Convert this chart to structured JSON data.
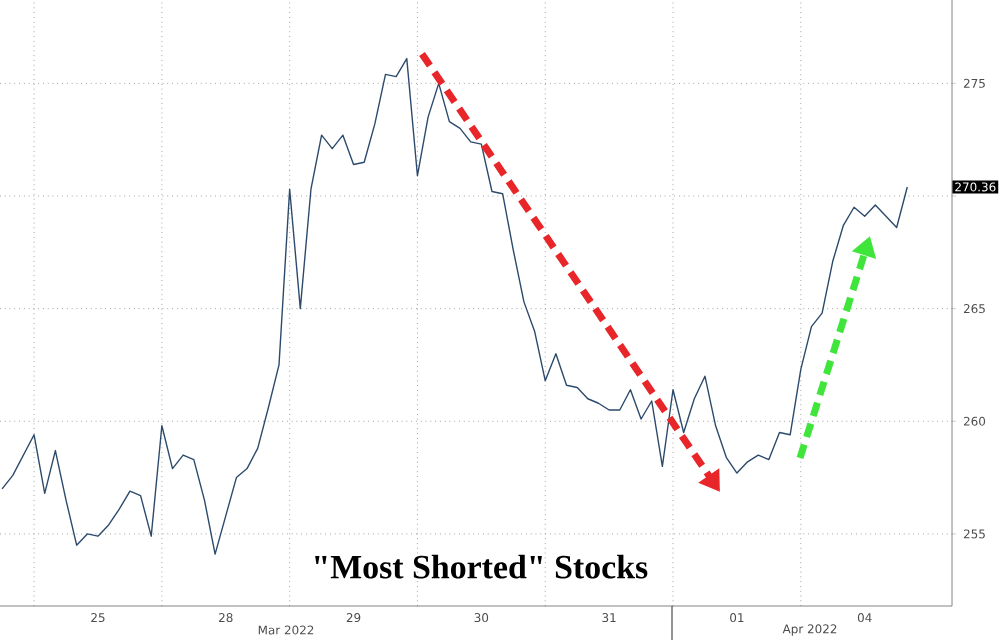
{
  "chart_data": {
    "type": "line",
    "title": "\"Most Shorted\" Stocks",
    "categories": [
      null,
      null,
      null,
      null,
      null,
      null,
      null,
      null,
      null,
      "25",
      null,
      null,
      null,
      null,
      null,
      null,
      null,
      null,
      null,
      null,
      null,
      "28",
      null,
      null,
      null,
      null,
      null,
      null,
      null,
      null,
      null,
      null,
      null,
      "29",
      null,
      null,
      null,
      null,
      null,
      null,
      null,
      null,
      null,
      null,
      null,
      "30",
      null,
      null,
      null,
      null,
      null,
      null,
      null,
      null,
      null,
      null,
      null,
      "31",
      null,
      null,
      null,
      null,
      null,
      null,
      null,
      null,
      null,
      null,
      null,
      "01",
      null,
      null,
      null,
      null,
      null,
      null,
      null,
      null,
      null,
      null,
      null,
      "04",
      null,
      null,
      null,
      null
    ],
    "series": [
      {
        "color": "#2c4a6b",
        "values": [
          257.0,
          257.6,
          258.5,
          259.4,
          256.8,
          258.7,
          256.5,
          254.5,
          255.0,
          254.9,
          255.4,
          256.1,
          256.9,
          256.7,
          254.9,
          259.8,
          257.9,
          258.5,
          258.3,
          256.5,
          254.1,
          255.8,
          257.5,
          257.9,
          258.8,
          260.6,
          262.5,
          270.3,
          265.0,
          270.3,
          272.7,
          272.1,
          272.7,
          271.4,
          271.5,
          273.2,
          275.4,
          275.3,
          276.1,
          270.9,
          273.5,
          275.0,
          273.3,
          273.0,
          272.4,
          272.3,
          270.2,
          270.1,
          267.6,
          265.3,
          264.0,
          261.8,
          263.0,
          261.6,
          261.5,
          261.0,
          260.8,
          260.5,
          260.5,
          261.4,
          260.1,
          260.9,
          258.0,
          261.4,
          259.5,
          261.0,
          262.0,
          259.8,
          258.4,
          257.7,
          258.2,
          258.5,
          258.3,
          259.5,
          259.4,
          262.3,
          264.2,
          264.8,
          267.1,
          268.7,
          269.5,
          269.1,
          269.6,
          269.1,
          268.6,
          270.4
        ]
      }
    ],
    "ylim": [
      251.8,
      278.7
    ],
    "yticks": [
      255,
      260,
      265,
      {
        "value": 270,
        "label": null
      },
      275
    ],
    "grid": true,
    "annotations": [
      "Mar 2022",
      "Apr 2022",
      "270.36"
    ]
  }
}
